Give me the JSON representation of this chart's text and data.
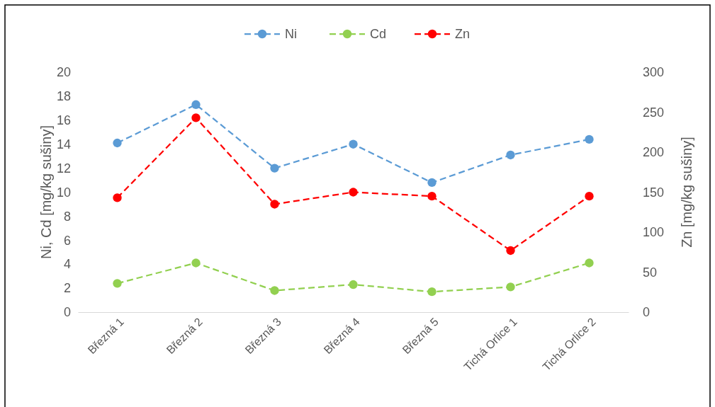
{
  "chart_data": {
    "type": "line",
    "ylabel": "Ni, Cd [mg/kg sušiny]",
    "y2label": "Zn [mg/kg sušiny]",
    "categories": [
      "Březná 1",
      "Březná 2",
      "Březná 3",
      "Březná 4",
      "Březná 5",
      "Tichá Orlice 1",
      "Tichá Orlice 2"
    ],
    "series": [
      {
        "name": "Ni",
        "color": "#5b9bd5",
        "values": [
          14.1,
          17.3,
          12.0,
          14.0,
          10.8,
          13.1,
          14.4
        ]
      },
      {
        "name": "Cd",
        "color": "#92d050",
        "values": [
          2.4,
          4.1,
          1.8,
          2.3,
          1.7,
          2.1,
          4.1
        ]
      },
      {
        "name": "Zn",
        "color": "#ff0000",
        "axis": "y2",
        "values": [
          143,
          243,
          135,
          150,
          145,
          77,
          145
        ]
      }
    ],
    "ylim": [
      0,
      20
    ],
    "yticks": [
      0,
      2,
      4,
      6,
      8,
      10,
      12,
      14,
      16,
      18,
      20
    ],
    "y2lim": [
      0,
      300
    ],
    "y2ticks": [
      0,
      50,
      100,
      150,
      200,
      250,
      300
    ],
    "grid": false,
    "legend": "top",
    "marker": "circle",
    "line_style": "dashed"
  }
}
